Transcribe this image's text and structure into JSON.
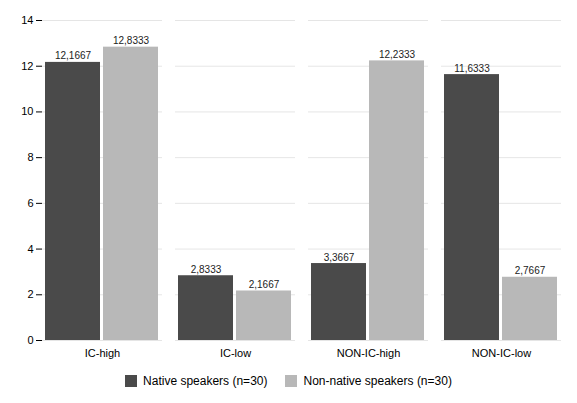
{
  "chart_data": {
    "type": "bar",
    "categories": [
      "IC-high",
      "IC-low",
      "NON-IC-high",
      "NON-IC-low"
    ],
    "series": [
      {
        "name": "Native speakers (n=30)",
        "color": "#4a4a4a",
        "values": [
          12.1667,
          2.8333,
          3.3667,
          11.6333
        ],
        "value_labels": [
          "12,1667",
          "2,8333",
          "3,3667",
          "11,6333"
        ]
      },
      {
        "name": "Non-native speakers (n=30)",
        "color": "#b8b8b8",
        "values": [
          12.8333,
          2.1667,
          12.2333,
          2.7667
        ],
        "value_labels": [
          "12,8333",
          "2,1667",
          "12,2333",
          "2,7667"
        ]
      }
    ],
    "ylim": [
      0,
      14
    ],
    "yticks": [
      0,
      2,
      4,
      6,
      8,
      10,
      12,
      14
    ],
    "grid": true,
    "data_labels": true,
    "legend": "bottom"
  }
}
